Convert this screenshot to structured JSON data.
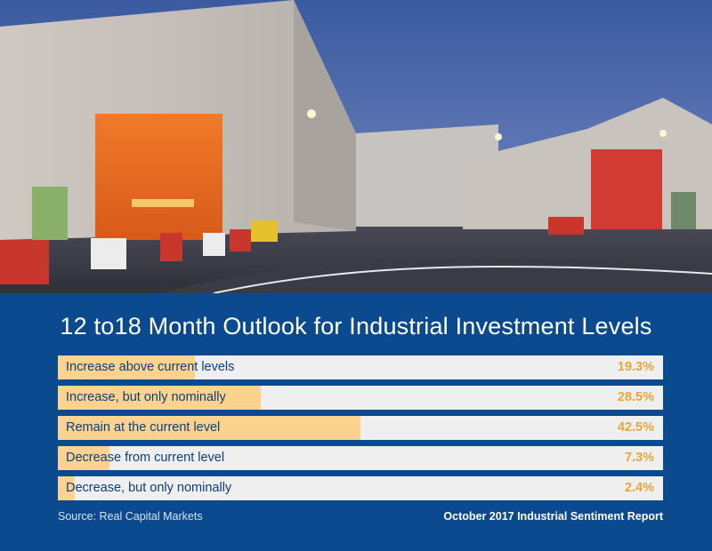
{
  "chart_data": {
    "type": "bar",
    "orientation": "horizontal",
    "title": "12 to18 Month Outlook for Industrial Investment Levels",
    "categories": [
      "Increase above current levels",
      "Increase, but only nominally",
      "Remain at the current level",
      "Decrease from current level",
      "Decrease, but only nominally"
    ],
    "values": [
      19.3,
      28.5,
      42.5,
      7.3,
      2.4
    ],
    "value_labels": [
      "19.3%",
      "28.5%",
      "42.5%",
      "7.3%",
      "2.4%"
    ],
    "xlim": [
      0,
      85
    ],
    "grid": false,
    "colors": {
      "bar_fill": "#fbd38f",
      "bar_track": "#efefef",
      "label": "#0b3f7a",
      "value": "#e9a53a",
      "panel": "#0b4a8e"
    }
  },
  "footer": {
    "source": "Source:  Real Capital Markets",
    "report": "October 2017 Industrial Sentiment Report"
  }
}
